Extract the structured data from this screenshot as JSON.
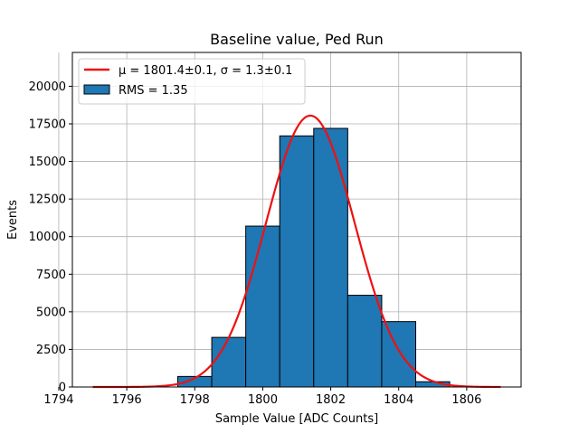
{
  "chart_data": {
    "type": "bar",
    "title": "Baseline value, Ped Run",
    "xlabel": "Sample Value [ADC Counts]",
    "ylabel": "Events",
    "xlim": [
      1794.4,
      1807.6
    ],
    "ylim": [
      0,
      22250
    ],
    "grid": true,
    "legend_position": "top-left",
    "xticks": [
      1794,
      1796,
      1798,
      1800,
      1802,
      1804,
      1806
    ],
    "yticks": [
      0,
      2500,
      5000,
      7500,
      10000,
      12500,
      15000,
      17500,
      20000
    ],
    "bins": [
      {
        "left": 1797.5,
        "right": 1798.5,
        "value": 700
      },
      {
        "left": 1798.5,
        "right": 1799.5,
        "value": 3300
      },
      {
        "left": 1799.5,
        "right": 1800.5,
        "value": 10700
      },
      {
        "left": 1800.5,
        "right": 1801.5,
        "value": 16700
      },
      {
        "left": 1801.5,
        "right": 1802.5,
        "value": 17200
      },
      {
        "left": 1802.5,
        "right": 1803.5,
        "value": 6100
      },
      {
        "left": 1803.5,
        "right": 1804.5,
        "value": 4350
      },
      {
        "left": 1804.5,
        "right": 1805.5,
        "value": 350
      }
    ],
    "fit": {
      "mu": 1801.4,
      "sigma": 1.3,
      "amplitude": 18050,
      "x_range": [
        1795,
        1807
      ]
    },
    "legend": [
      {
        "label": "$\\mu = 1801.4 \\pm 0.1$, $\\sigma = 1.3 \\pm 0.1$",
        "label_text": "μ = 1801.4±0.1, σ = 1.3±0.1",
        "kind": "line",
        "color": "#ee1111"
      },
      {
        "label": "RMS = 1.35",
        "label_text": "RMS = 1.35",
        "kind": "patch",
        "color": "#1f77b4"
      }
    ]
  }
}
